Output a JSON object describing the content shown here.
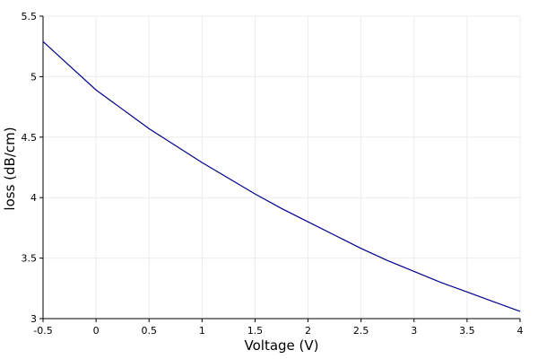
{
  "chart_data": {
    "type": "line",
    "xlabel": "Voltage (V)",
    "ylabel": "loss (dB/cm)",
    "xlim": [
      -0.5,
      4
    ],
    "ylim": [
      3,
      5.5
    ],
    "grid": true,
    "x_ticks": [
      "-0.5",
      "0",
      "0.5",
      "1",
      "1.5",
      "2",
      "2.5",
      "3",
      "3.5",
      "4"
    ],
    "y_ticks": [
      "3",
      "3.5",
      "4",
      "4.5",
      "5",
      "5.5"
    ],
    "series": [
      {
        "color": "#00008b",
        "x": [
          -0.5,
          -0.25,
          0,
          0.25,
          0.5,
          0.75,
          1,
          1.25,
          1.5,
          1.75,
          2,
          2.25,
          2.5,
          2.75,
          3,
          3.25,
          3.5,
          3.75,
          4
        ],
        "y": [
          5.29,
          5.09,
          4.89,
          4.73,
          4.57,
          4.43,
          4.29,
          4.16,
          4.03,
          3.91,
          3.8,
          3.69,
          3.58,
          3.48,
          3.39,
          3.3,
          3.22,
          3.14,
          3.06
        ]
      }
    ]
  }
}
